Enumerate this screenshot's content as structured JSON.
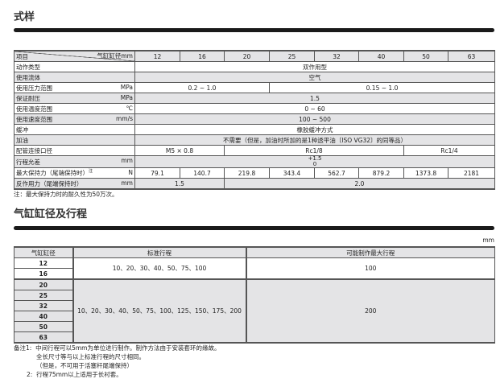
{
  "spec": {
    "title": "式样",
    "header": {
      "item": "项目",
      "bore_label": "气缸缸径mm",
      "bores": [
        "12",
        "16",
        "20",
        "25",
        "32",
        "40",
        "50",
        "63"
      ]
    },
    "rows": {
      "action": {
        "label": "动作类型",
        "value": "双作用型"
      },
      "fluid": {
        "label": "使用流体",
        "value": "空气"
      },
      "pressure": {
        "label": "使用压力范围",
        "unit": "MPa",
        "small": "0.2 ~ 1.0",
        "large": "0.15 ~ 1.0"
      },
      "proof": {
        "label": "保证耐压",
        "unit": "MPa",
        "value": "1.5"
      },
      "temp": {
        "label": "使用温度范围",
        "unit": "℃",
        "value": "0 ~ 60"
      },
      "speed": {
        "label": "使用速度范围",
        "unit": "mm/s",
        "value": "100 ~ 500"
      },
      "cushion": {
        "label": "缓冲",
        "value": "橡胶缓冲方式"
      },
      "lube": {
        "label": "加油",
        "value": "不需要（但是，加油时所加的是1种透平油〔ISO VG32〕的同等品）"
      },
      "port": {
        "label": "配管连接口径",
        "v1": "M5 × 0.8",
        "v2": "Rc1/8",
        "v3": "Rc1/4"
      },
      "stroke_tol": {
        "label": "行程允差",
        "unit": "mm",
        "upper": "+1.5",
        "lower": "0"
      },
      "hold": {
        "label": "最大保持力（尾端保持时）",
        "note_mark": "注",
        "unit": "N",
        "values": [
          "79.1",
          "140.7",
          "219.8",
          "343.4",
          "562.7",
          "879.2",
          "1373.8",
          "2181"
        ]
      },
      "reaction": {
        "label": "反作用力（尾端保持时）",
        "unit": "mm",
        "small": "1.5",
        "large": "2.0"
      }
    },
    "note": "注：最大保持力时的耐久性为50万次。"
  },
  "stroke": {
    "title": "气缸缸径及行程",
    "unit": "mm",
    "headers": [
      "气缸缸径",
      "标准行程",
      "可能制作最大行程"
    ],
    "bores": [
      "12",
      "16",
      "20",
      "25",
      "32",
      "40",
      "50",
      "63"
    ],
    "std_small": "10、20、30、40、50、75、100",
    "max_small": "100",
    "std_large": "10、20、30、40、50、75、100、125、150、175、200",
    "max_large": "200",
    "notes": [
      "备注1:  中间行程可以5mm为单位进行制作。制作方法由于安装套环的缘故。",
      "全长尺寸等与以上标准行程的尺寸相同。",
      "（但是，不可用于活塞杆尾端保持）",
      "2:  行程75mm以上适用于长衬套。"
    ]
  }
}
